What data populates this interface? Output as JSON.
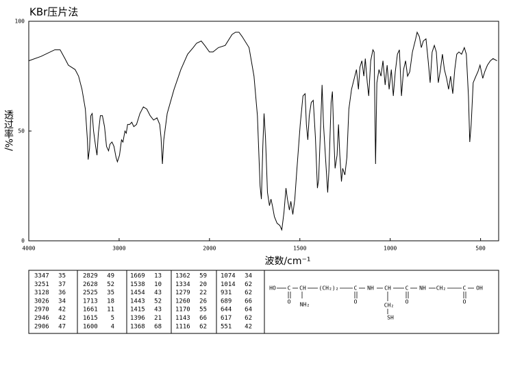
{
  "chart_data": {
    "type": "line",
    "title": "KBr压片法",
    "xlabel": "波数/cm⁻¹",
    "ylabel": "透过率%/",
    "xlim": [
      4000,
      400
    ],
    "ylim": [
      0,
      100
    ],
    "xscale_break": 2000,
    "xticks": [
      4000,
      3000,
      2000,
      1500,
      1000,
      500
    ],
    "yticks": [
      0,
      50,
      100
    ],
    "color": "#000000",
    "x": [
      4000,
      3864,
      3713,
      3653,
      3600,
      3562,
      3487,
      3449,
      3411,
      3374,
      3351,
      3343,
      3328,
      3313,
      3298,
      3283,
      3260,
      3245,
      3230,
      3208,
      3185,
      3162,
      3140,
      3117,
      3102,
      3079,
      3057,
      3034,
      3019,
      2996,
      2974,
      2958,
      2936,
      2921,
      2906,
      2883,
      2860,
      2838,
      2808,
      2770,
      2732,
      2694,
      2657,
      2619,
      2581,
      2551,
      2536,
      2521,
      2506,
      2468,
      2392,
      2317,
      2242,
      2181,
      2143,
      2091,
      2053,
      2000,
      1981,
      1951,
      1913,
      1875,
      1856,
      1837,
      1819,
      1781,
      1754,
      1735,
      1720,
      1713,
      1705,
      1698,
      1690,
      1679,
      1668,
      1660,
      1652,
      1641,
      1626,
      1611,
      1600,
      1588,
      1577,
      1569,
      1558,
      1550,
      1539,
      1528,
      1517,
      1498,
      1483,
      1471,
      1464,
      1456,
      1448,
      1437,
      1426,
      1414,
      1403,
      1396,
      1384,
      1377,
      1369,
      1358,
      1346,
      1339,
      1327,
      1320,
      1312,
      1305,
      1294,
      1286,
      1279,
      1270,
      1263,
      1251,
      1240,
      1229,
      1214,
      1199,
      1187,
      1176,
      1168,
      1157,
      1146,
      1138,
      1127,
      1119,
      1108,
      1096,
      1089,
      1081,
      1074,
      1062,
      1051,
      1040,
      1028,
      1017,
      1006,
      994,
      983,
      972,
      960,
      949,
      938,
      926,
      915,
      904,
      892,
      877,
      862,
      851,
      839,
      828,
      817,
      802,
      790,
      779,
      768,
      756,
      745,
      734,
      722,
      711,
      700,
      688,
      677,
      666,
      654,
      643,
      632,
      620,
      605,
      590,
      579,
      567,
      560,
      552,
      541,
      526,
      515,
      503,
      488,
      477,
      462,
      446,
      431,
      409
    ],
    "values": [
      82,
      84,
      87,
      87,
      83,
      80,
      78,
      75,
      69,
      60,
      46,
      37,
      42,
      57,
      58,
      50,
      43,
      39,
      49,
      57,
      57,
      52,
      43,
      41,
      44,
      45,
      43,
      38,
      36,
      39,
      46,
      45,
      50,
      49,
      53,
      53,
      54,
      52,
      53,
      58,
      61,
      60,
      57,
      55,
      56,
      53,
      47,
      35,
      46,
      58,
      69,
      78,
      85,
      88,
      90,
      91,
      89,
      86,
      86,
      88,
      89,
      94,
      95,
      95,
      93,
      88,
      75,
      57,
      25,
      19,
      43,
      58,
      47,
      22,
      16,
      19,
      16,
      11,
      8,
      7,
      5,
      13,
      24,
      19,
      14,
      18,
      12,
      19,
      32,
      53,
      66,
      67,
      53,
      46,
      57,
      63,
      64,
      47,
      24,
      28,
      55,
      71,
      53,
      38,
      22,
      32,
      63,
      68,
      47,
      33,
      39,
      53,
      39,
      27,
      33,
      30,
      38,
      60,
      69,
      74,
      78,
      69,
      79,
      82,
      75,
      83,
      72,
      66,
      82,
      87,
      86,
      35,
      72,
      78,
      75,
      82,
      71,
      80,
      69,
      78,
      66,
      77,
      85,
      87,
      66,
      78,
      82,
      75,
      77,
      86,
      91,
      95,
      93,
      88,
      91,
      92,
      82,
      72,
      86,
      89,
      86,
      72,
      78,
      85,
      78,
      74,
      69,
      75,
      67,
      78,
      85,
      86,
      85,
      88,
      85,
      66,
      45,
      53,
      72,
      75,
      77,
      80,
      74,
      77,
      80,
      82,
      83,
      82
    ]
  },
  "peak_table": {
    "rows": [
      [
        3347,
        35
      ],
      [
        3251,
        37
      ],
      [
        3128,
        36
      ],
      [
        3026,
        34
      ],
      [
        2970,
        42
      ],
      [
        2946,
        42
      ],
      [
        2906,
        47
      ],
      [
        2829,
        49
      ],
      [
        2628,
        52
      ],
      [
        2525,
        35
      ],
      [
        1713,
        18
      ],
      [
        1661,
        11
      ],
      [
        1615,
        5
      ],
      [
        1600,
        4
      ],
      [
        1669,
        13
      ],
      [
        1538,
        10
      ],
      [
        1454,
        43
      ],
      [
        1443,
        52
      ],
      [
        1415,
        43
      ],
      [
        1396,
        21
      ],
      [
        1368,
        68
      ],
      [
        1362,
        59
      ],
      [
        1334,
        20
      ],
      [
        1279,
        22
      ],
      [
        1260,
        26
      ],
      [
        1170,
        55
      ],
      [
        1143,
        66
      ],
      [
        1116,
        62
      ],
      [
        1074,
        34
      ],
      [
        1014,
        62
      ],
      [
        931,
        62
      ],
      [
        689,
        66
      ],
      [
        644,
        64
      ],
      [
        617,
        62
      ],
      [
        551,
        42
      ]
    ]
  },
  "structure": {
    "atoms": [
      "HO",
      "C",
      "CH",
      "(CH₂)₂",
      "C",
      "NH",
      "CH",
      "C",
      "NH",
      "CH₂",
      "C",
      "OH",
      "O",
      "NH₂",
      "O",
      "CH₂",
      "SH",
      "O",
      "O"
    ]
  }
}
